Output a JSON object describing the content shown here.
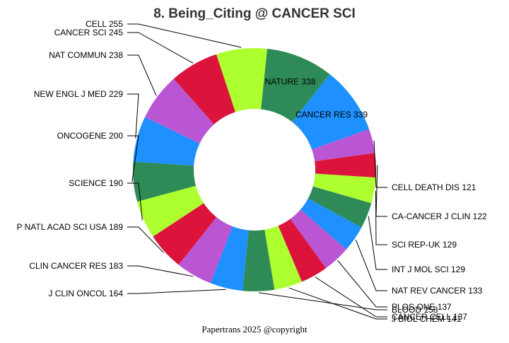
{
  "footer": "Papertrans 2025 @copyright",
  "chart_data": {
    "type": "pie",
    "donut": true,
    "title": "8. Being_Citing @ CANCER SCI",
    "slices": [
      {
        "name": "NATURE",
        "value": 338,
        "color": "#2E8B57"
      },
      {
        "name": "CANCER RES",
        "value": 339,
        "color": "#1E90FF"
      },
      {
        "name": "CELL DEATH DIS",
        "value": 121,
        "color": "#BA55D3"
      },
      {
        "name": "CA-CANCER J CLIN",
        "value": 122,
        "color": "#DC143C"
      },
      {
        "name": "SCI REP-UK",
        "value": 129,
        "color": "#ADFF2F"
      },
      {
        "name": "INT J MOL SCI",
        "value": 129,
        "color": "#2E8B57"
      },
      {
        "name": "NAT REV CANCER",
        "value": 133,
        "color": "#1E90FF"
      },
      {
        "name": "PLOS ONE",
        "value": 137,
        "color": "#BA55D3"
      },
      {
        "name": "CANCER CELL",
        "value": 137,
        "color": "#DC143C"
      },
      {
        "name": "J BIOL CHEM",
        "value": 141,
        "color": "#ADFF2F"
      },
      {
        "name": "BLOOD",
        "value": 158,
        "color": "#2E8B57"
      },
      {
        "name": "J CLIN ONCOL",
        "value": 164,
        "color": "#1E90FF"
      },
      {
        "name": "CLIN CANCER RES",
        "value": 183,
        "color": "#BA55D3"
      },
      {
        "name": "P NATL ACAD SCI USA",
        "value": 189,
        "color": "#DC143C"
      },
      {
        "name": "SCIENCE",
        "value": 190,
        "color": "#ADFF2F"
      },
      {
        "name": "ONCOGENE",
        "value": 200,
        "color": "#2E8B57"
      },
      {
        "name": "NEW ENGL J MED",
        "value": 229,
        "color": "#1E90FF"
      },
      {
        "name": "NAT COMMUN",
        "value": 238,
        "color": "#BA55D3"
      },
      {
        "name": "CANCER SCI",
        "value": 245,
        "color": "#DC143C"
      },
      {
        "name": "CELL",
        "value": 255,
        "color": "#ADFF2F"
      }
    ]
  }
}
